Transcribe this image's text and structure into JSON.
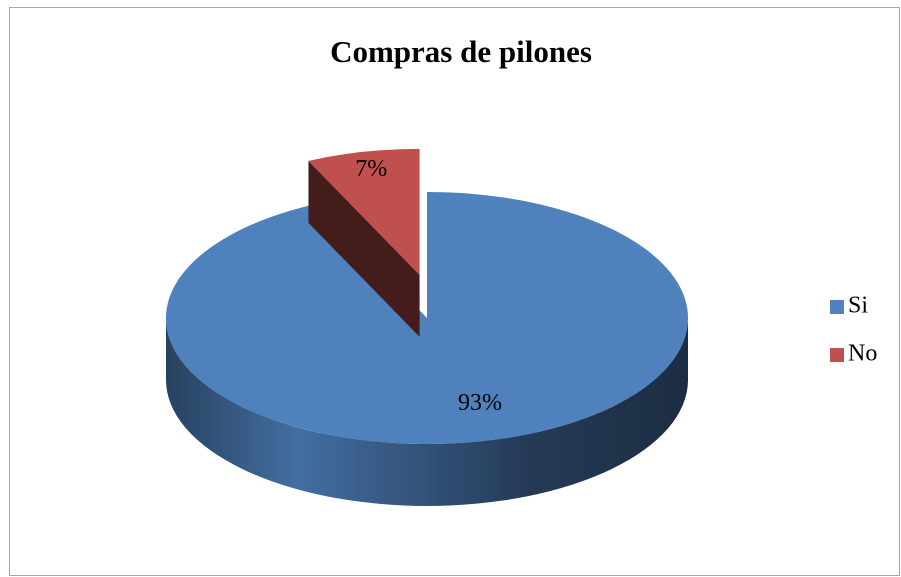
{
  "chart_data": {
    "type": "pie",
    "title": "Compras de pilones",
    "categories": [
      "Si",
      "No"
    ],
    "values": [
      93,
      7
    ],
    "value_labels": [
      "93%",
      "7%"
    ],
    "colors": [
      "#4f81bd",
      "#c0504d"
    ],
    "legend": "right"
  }
}
